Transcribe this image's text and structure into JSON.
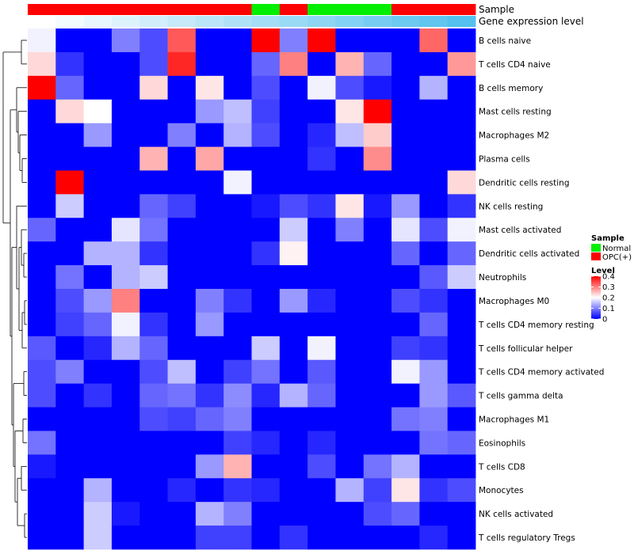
{
  "chart_data": {
    "type": "heatmap",
    "title": "",
    "annotation_labels": {
      "sample": "Sample",
      "gene_level": "Gene expression level"
    },
    "columns": 16,
    "sample_groups": [
      "OPC(+)",
      "OPC(+)",
      "OPC(+)",
      "OPC(+)",
      "OPC(+)",
      "OPC(+)",
      "OPC(+)",
      "OPC(+)",
      "Normal",
      "OPC(+)",
      "Normal",
      "Normal",
      "Normal",
      "OPC(+)",
      "OPC(+)",
      "OPC(+)"
    ],
    "gene_level_gradient": [
      "#ffffff",
      "#55c1ee"
    ],
    "rows": [
      "B cells naive",
      "T cells CD4 naive",
      "B cells memory",
      "Mast cells resting",
      "Macrophages M2",
      "Plasma cells",
      "Dendritic cells resting",
      "NK cells resting",
      "Mast cells activated",
      "Dendritic cells activated",
      "Neutrophils",
      "Macrophages M0",
      "T cells CD4 memory resting",
      "T cells follicular helper",
      "T cells CD4 memory activated",
      "T cells gamma delta",
      "Macrophages M1",
      "Eosinophils",
      "T cells CD8",
      "Monocytes",
      "NK cells activated",
      "T cells regulatory  Tregs"
    ],
    "values": [
      [
        0.19,
        0,
        0,
        0.1,
        0.06,
        0.33,
        0,
        0,
        0.4,
        0.1,
        0.4,
        0,
        0,
        0,
        0.32,
        0
      ],
      [
        0.23,
        0.04,
        0,
        0,
        0.06,
        0.37,
        0,
        0,
        0.08,
        0.3,
        0,
        0.26,
        0.08,
        0,
        0,
        0.28
      ],
      [
        0.4,
        0.08,
        0,
        0,
        0.23,
        0,
        0.22,
        0,
        0.06,
        0,
        0.19,
        0.06,
        0.02,
        0,
        0.14,
        0
      ],
      [
        0,
        0.23,
        0.2,
        0,
        0,
        0,
        0.12,
        0.15,
        0.05,
        0,
        0,
        0.22,
        0.4,
        0,
        0,
        0
      ],
      [
        0,
        0,
        0.12,
        0,
        0,
        0.1,
        0,
        0.14,
        0.06,
        0,
        0.03,
        0.15,
        0.24,
        0,
        0,
        0
      ],
      [
        0,
        0,
        0,
        0,
        0.26,
        0,
        0.27,
        0,
        0,
        0,
        0.04,
        0,
        0.29,
        0,
        0,
        0
      ],
      [
        0,
        0.4,
        0,
        0,
        0,
        0,
        0,
        0.19,
        0,
        0,
        0,
        0,
        0,
        0,
        0,
        0.23
      ],
      [
        0,
        0.16,
        0,
        0,
        0.08,
        0.05,
        0,
        0,
        0.02,
        0.06,
        0.04,
        0.22,
        0.02,
        0.12,
        0,
        0.04
      ],
      [
        0.08,
        0,
        0,
        0.18,
        0.09,
        0,
        0,
        0,
        0,
        0.16,
        0,
        0.1,
        0,
        0.18,
        0.06,
        0.19
      ],
      [
        0,
        0,
        0.14,
        0.14,
        0.04,
        0,
        0,
        0,
        0.04,
        0.21,
        0,
        0,
        0,
        0.08,
        0,
        0.08
      ],
      [
        0,
        0.09,
        0,
        0.14,
        0.16,
        0,
        0,
        0,
        0,
        0,
        0,
        0,
        0,
        0,
        0.07,
        0.16
      ],
      [
        0,
        0.06,
        0.12,
        0.3,
        0,
        0,
        0.1,
        0.04,
        0,
        0.12,
        0.03,
        0,
        0,
        0.06,
        0.04,
        0
      ],
      [
        0,
        0.05,
        0.08,
        0.19,
        0.04,
        0,
        0.12,
        0,
        0,
        0,
        0,
        0,
        0,
        0,
        0.08,
        0
      ],
      [
        0.07,
        0,
        0.03,
        0.14,
        0.08,
        0,
        0,
        0,
        0.16,
        0,
        0.19,
        0,
        0,
        0.05,
        0.04,
        0
      ],
      [
        0.06,
        0.1,
        0,
        0,
        0.06,
        0.15,
        0,
        0.05,
        0.09,
        0,
        0.07,
        0,
        0,
        0.19,
        0.12,
        0
      ],
      [
        0.06,
        0,
        0.04,
        0,
        0.08,
        0.09,
        0.04,
        0.11,
        0.03,
        0.14,
        0.08,
        0,
        0,
        0,
        0.12,
        0.07
      ],
      [
        0,
        0,
        0,
        0,
        0.06,
        0.05,
        0.08,
        0.1,
        0,
        0,
        0,
        0,
        0,
        0.09,
        0.1,
        0
      ],
      [
        0.09,
        0,
        0,
        0,
        0,
        0,
        0,
        0.05,
        0.03,
        0,
        0.03,
        0,
        0,
        0,
        0.09,
        0.08
      ],
      [
        0.02,
        0,
        0,
        0,
        0,
        0,
        0.12,
        0.26,
        0,
        0,
        0.06,
        0,
        0.09,
        0.14,
        0,
        0
      ],
      [
        0,
        0,
        0.14,
        0,
        0,
        0.03,
        0,
        0.04,
        0.03,
        0,
        0,
        0.14,
        0.05,
        0.22,
        0.04,
        0.06
      ],
      [
        0,
        0,
        0.16,
        0.02,
        0,
        0,
        0.14,
        0.1,
        0,
        0,
        0,
        0,
        0.06,
        0.08,
        0,
        0
      ],
      [
        0,
        0,
        0.16,
        0,
        0,
        0,
        0.05,
        0.05,
        0,
        0.04,
        0,
        0,
        0,
        0,
        0.03,
        0
      ]
    ],
    "color_scale": {
      "min": 0,
      "max": 0.4,
      "low": "#0000ff",
      "mid": "#ffffff",
      "high": "#ff0000"
    },
    "legend": {
      "placement": "right",
      "sample_title": "Sample",
      "sample_entries": [
        {
          "label": "Normal",
          "color": "#00ee00"
        },
        {
          "label": "OPC(+)",
          "color": "#ff0000"
        }
      ],
      "level_title": "Level",
      "level_ticks": [
        "0.4",
        "0.3",
        "0.2",
        "0.1",
        "0"
      ]
    },
    "dendrogram": "left"
  }
}
